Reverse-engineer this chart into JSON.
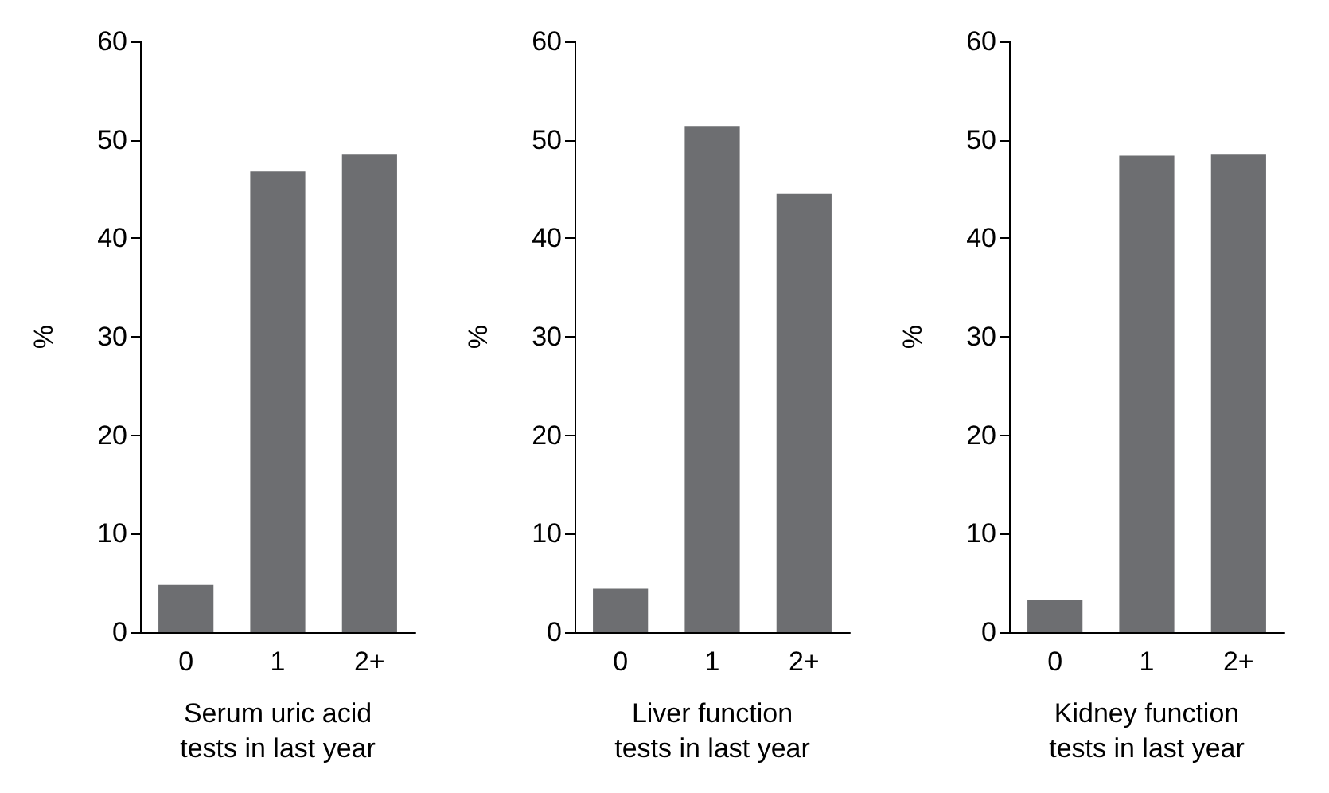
{
  "chart_data": [
    {
      "type": "bar",
      "xlabel": "Serum uric acid\ntests in last year",
      "ylabel": "%",
      "categories": [
        "0",
        "1",
        "2+"
      ],
      "values": [
        4.8,
        46.8,
        48.5
      ],
      "color": "#6d6e71",
      "ylim": [
        0,
        60
      ],
      "yticks": [
        0,
        10,
        20,
        30,
        40,
        50,
        60
      ]
    },
    {
      "type": "bar",
      "xlabel": "Liver function\ntests in last year",
      "ylabel": "%",
      "categories": [
        "0",
        "1",
        "2+"
      ],
      "values": [
        4.4,
        51.4,
        44.5
      ],
      "color": "#6d6e71",
      "ylim": [
        0,
        60
      ],
      "yticks": [
        0,
        10,
        20,
        30,
        40,
        50,
        60
      ]
    },
    {
      "type": "bar",
      "xlabel": "Kidney function\ntests in last year",
      "ylabel": "%",
      "categories": [
        "0",
        "1",
        "2+"
      ],
      "values": [
        3.3,
        48.4,
        48.5
      ],
      "color": "#6d6e71",
      "ylim": [
        0,
        60
      ],
      "yticks": [
        0,
        10,
        20,
        30,
        40,
        50,
        60
      ]
    }
  ]
}
